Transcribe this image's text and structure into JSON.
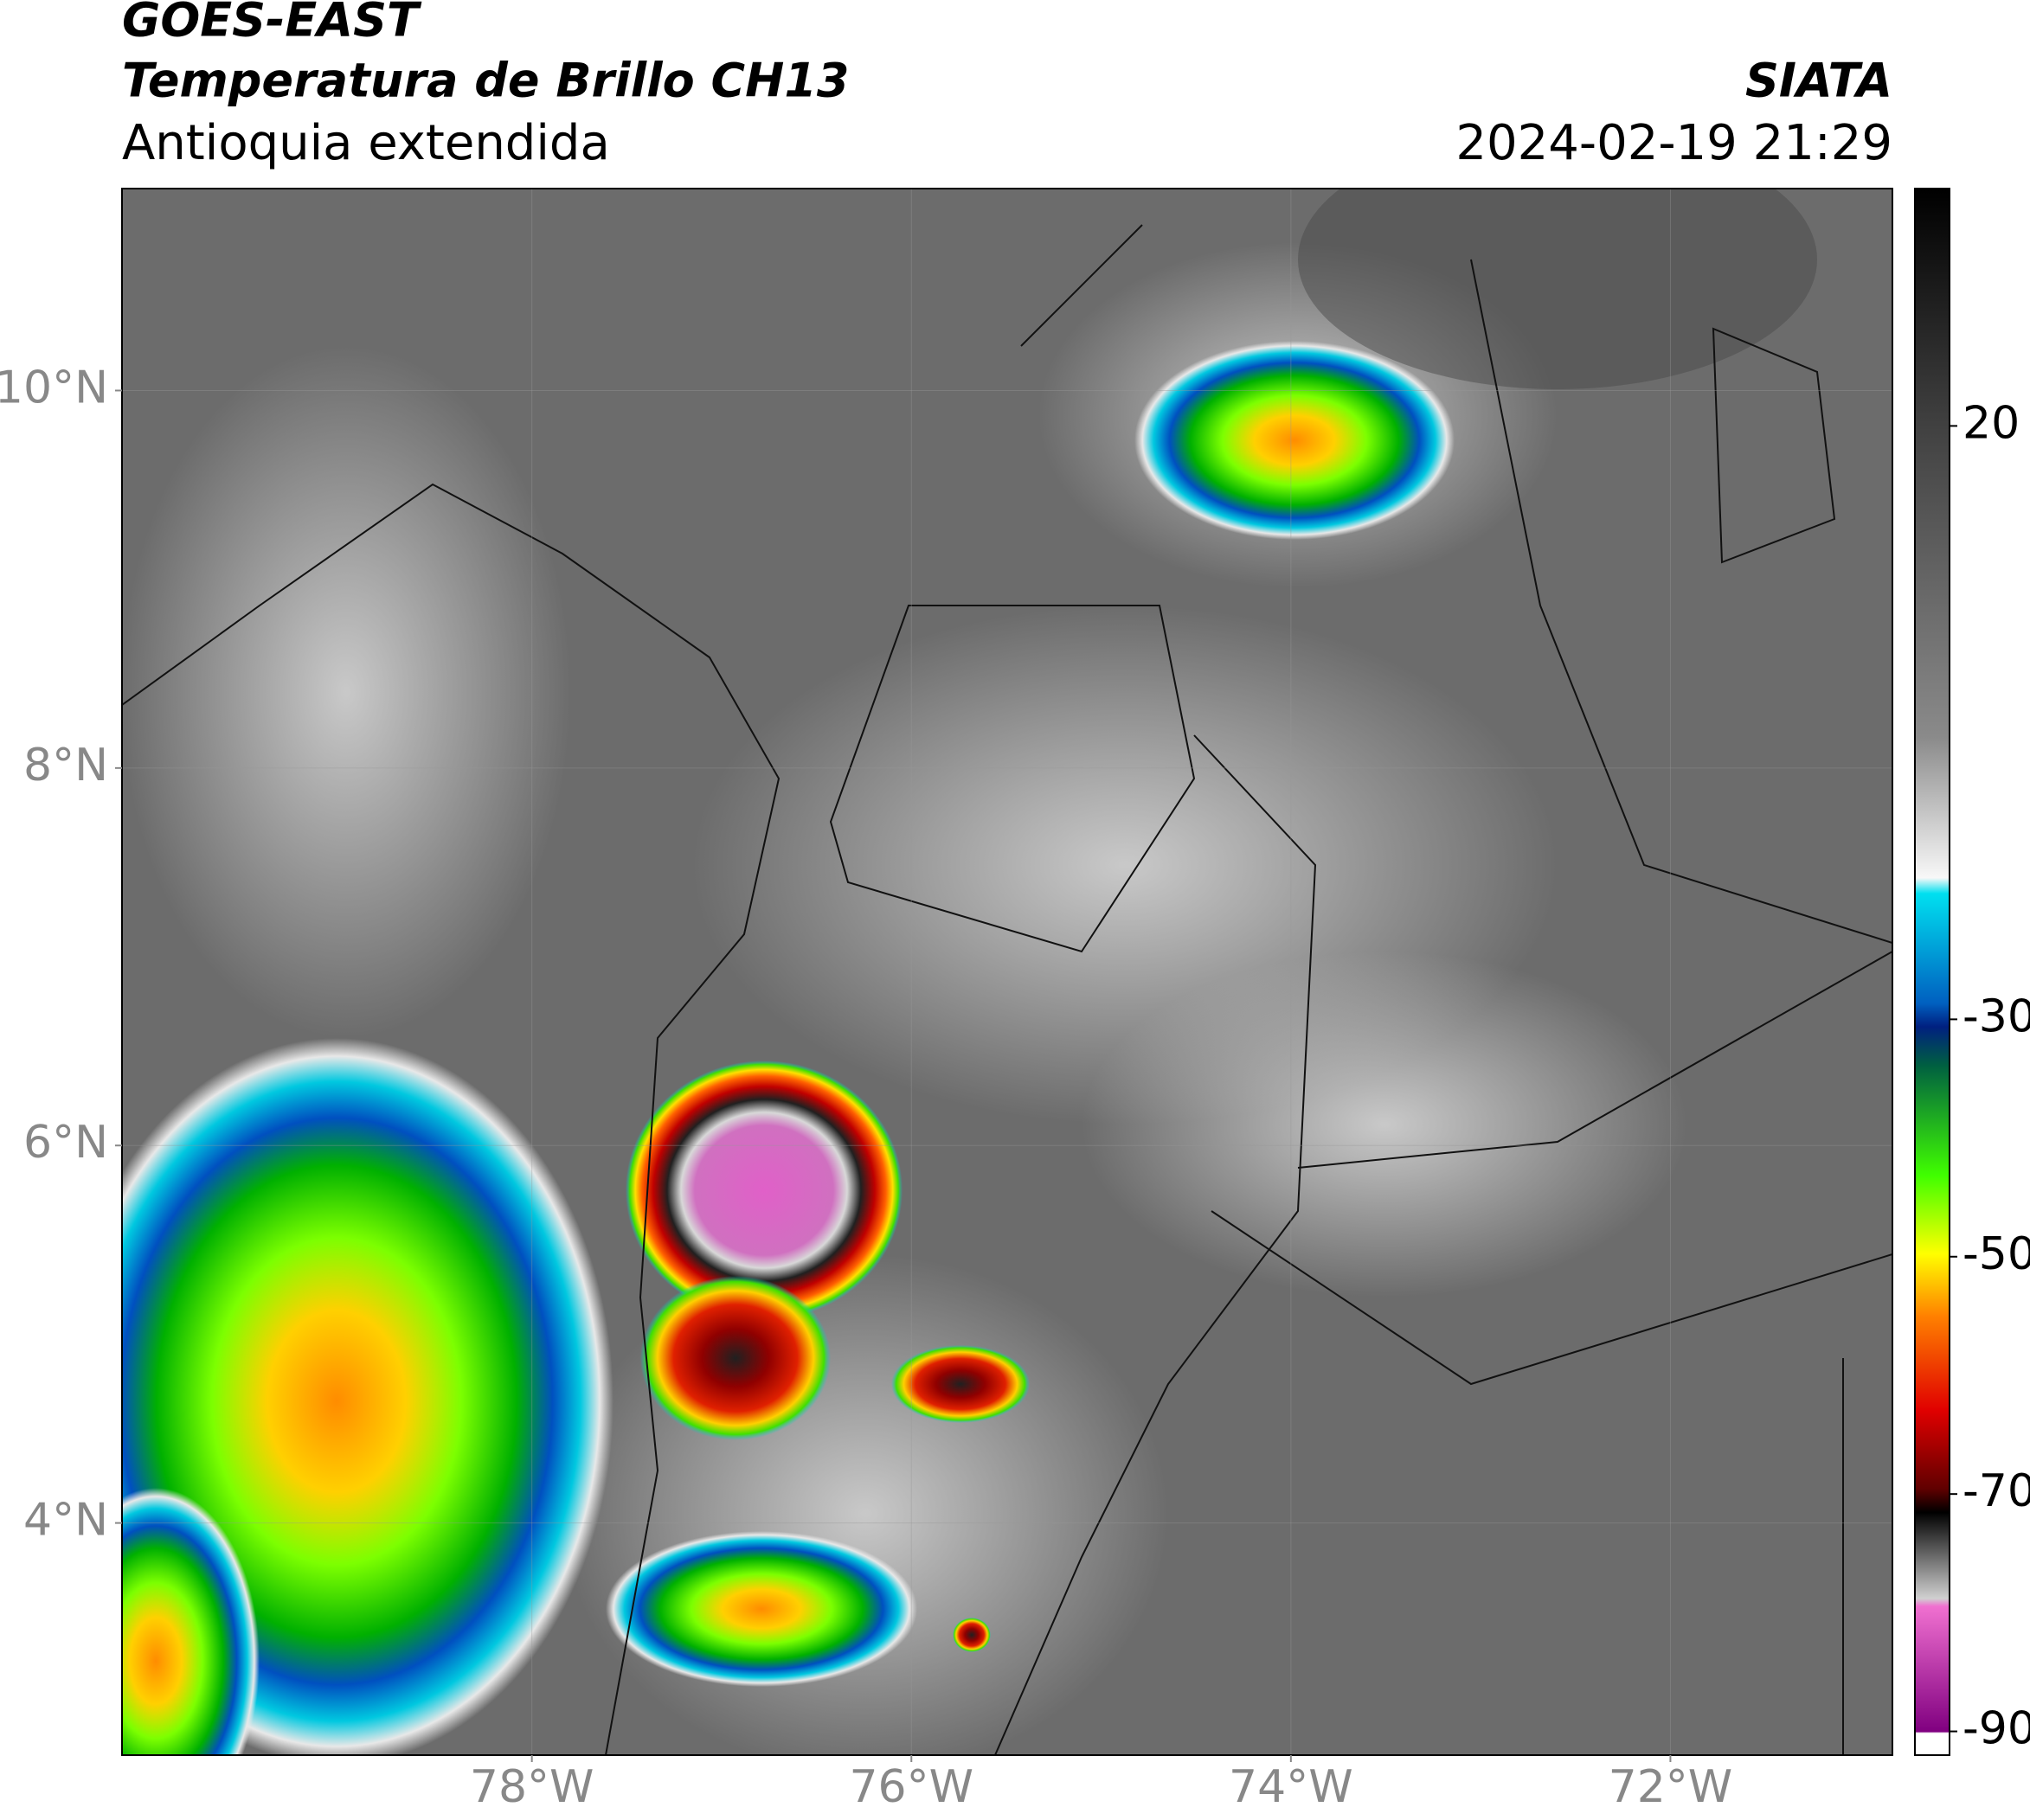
{
  "header": {
    "title": "GOES-EAST",
    "subtitle": "Temperatura de Brillo CH13",
    "region": "Antioquia extendida",
    "source": "SIATA",
    "timestamp": "2024-02-19 21:29"
  },
  "map": {
    "xlim": [
      -80.16,
      -70.83
    ],
    "ylim": [
      2.77,
      11.07
    ],
    "xticks": [
      {
        "value": -78,
        "label": "78°W"
      },
      {
        "value": -76,
        "label": "76°W"
      },
      {
        "value": -74,
        "label": "74°W"
      },
      {
        "value": -72,
        "label": "72°W"
      }
    ],
    "yticks": [
      {
        "value": 4,
        "label": "4°N"
      },
      {
        "value": 6,
        "label": "6°N"
      },
      {
        "value": 8,
        "label": "8°N"
      },
      {
        "value": 10,
        "label": "10°N"
      }
    ],
    "grid": true
  },
  "colorbar": {
    "lim": [
      -92,
      40
    ],
    "ticks": [
      20,
      -30,
      -50,
      -70,
      -90
    ]
  }
}
